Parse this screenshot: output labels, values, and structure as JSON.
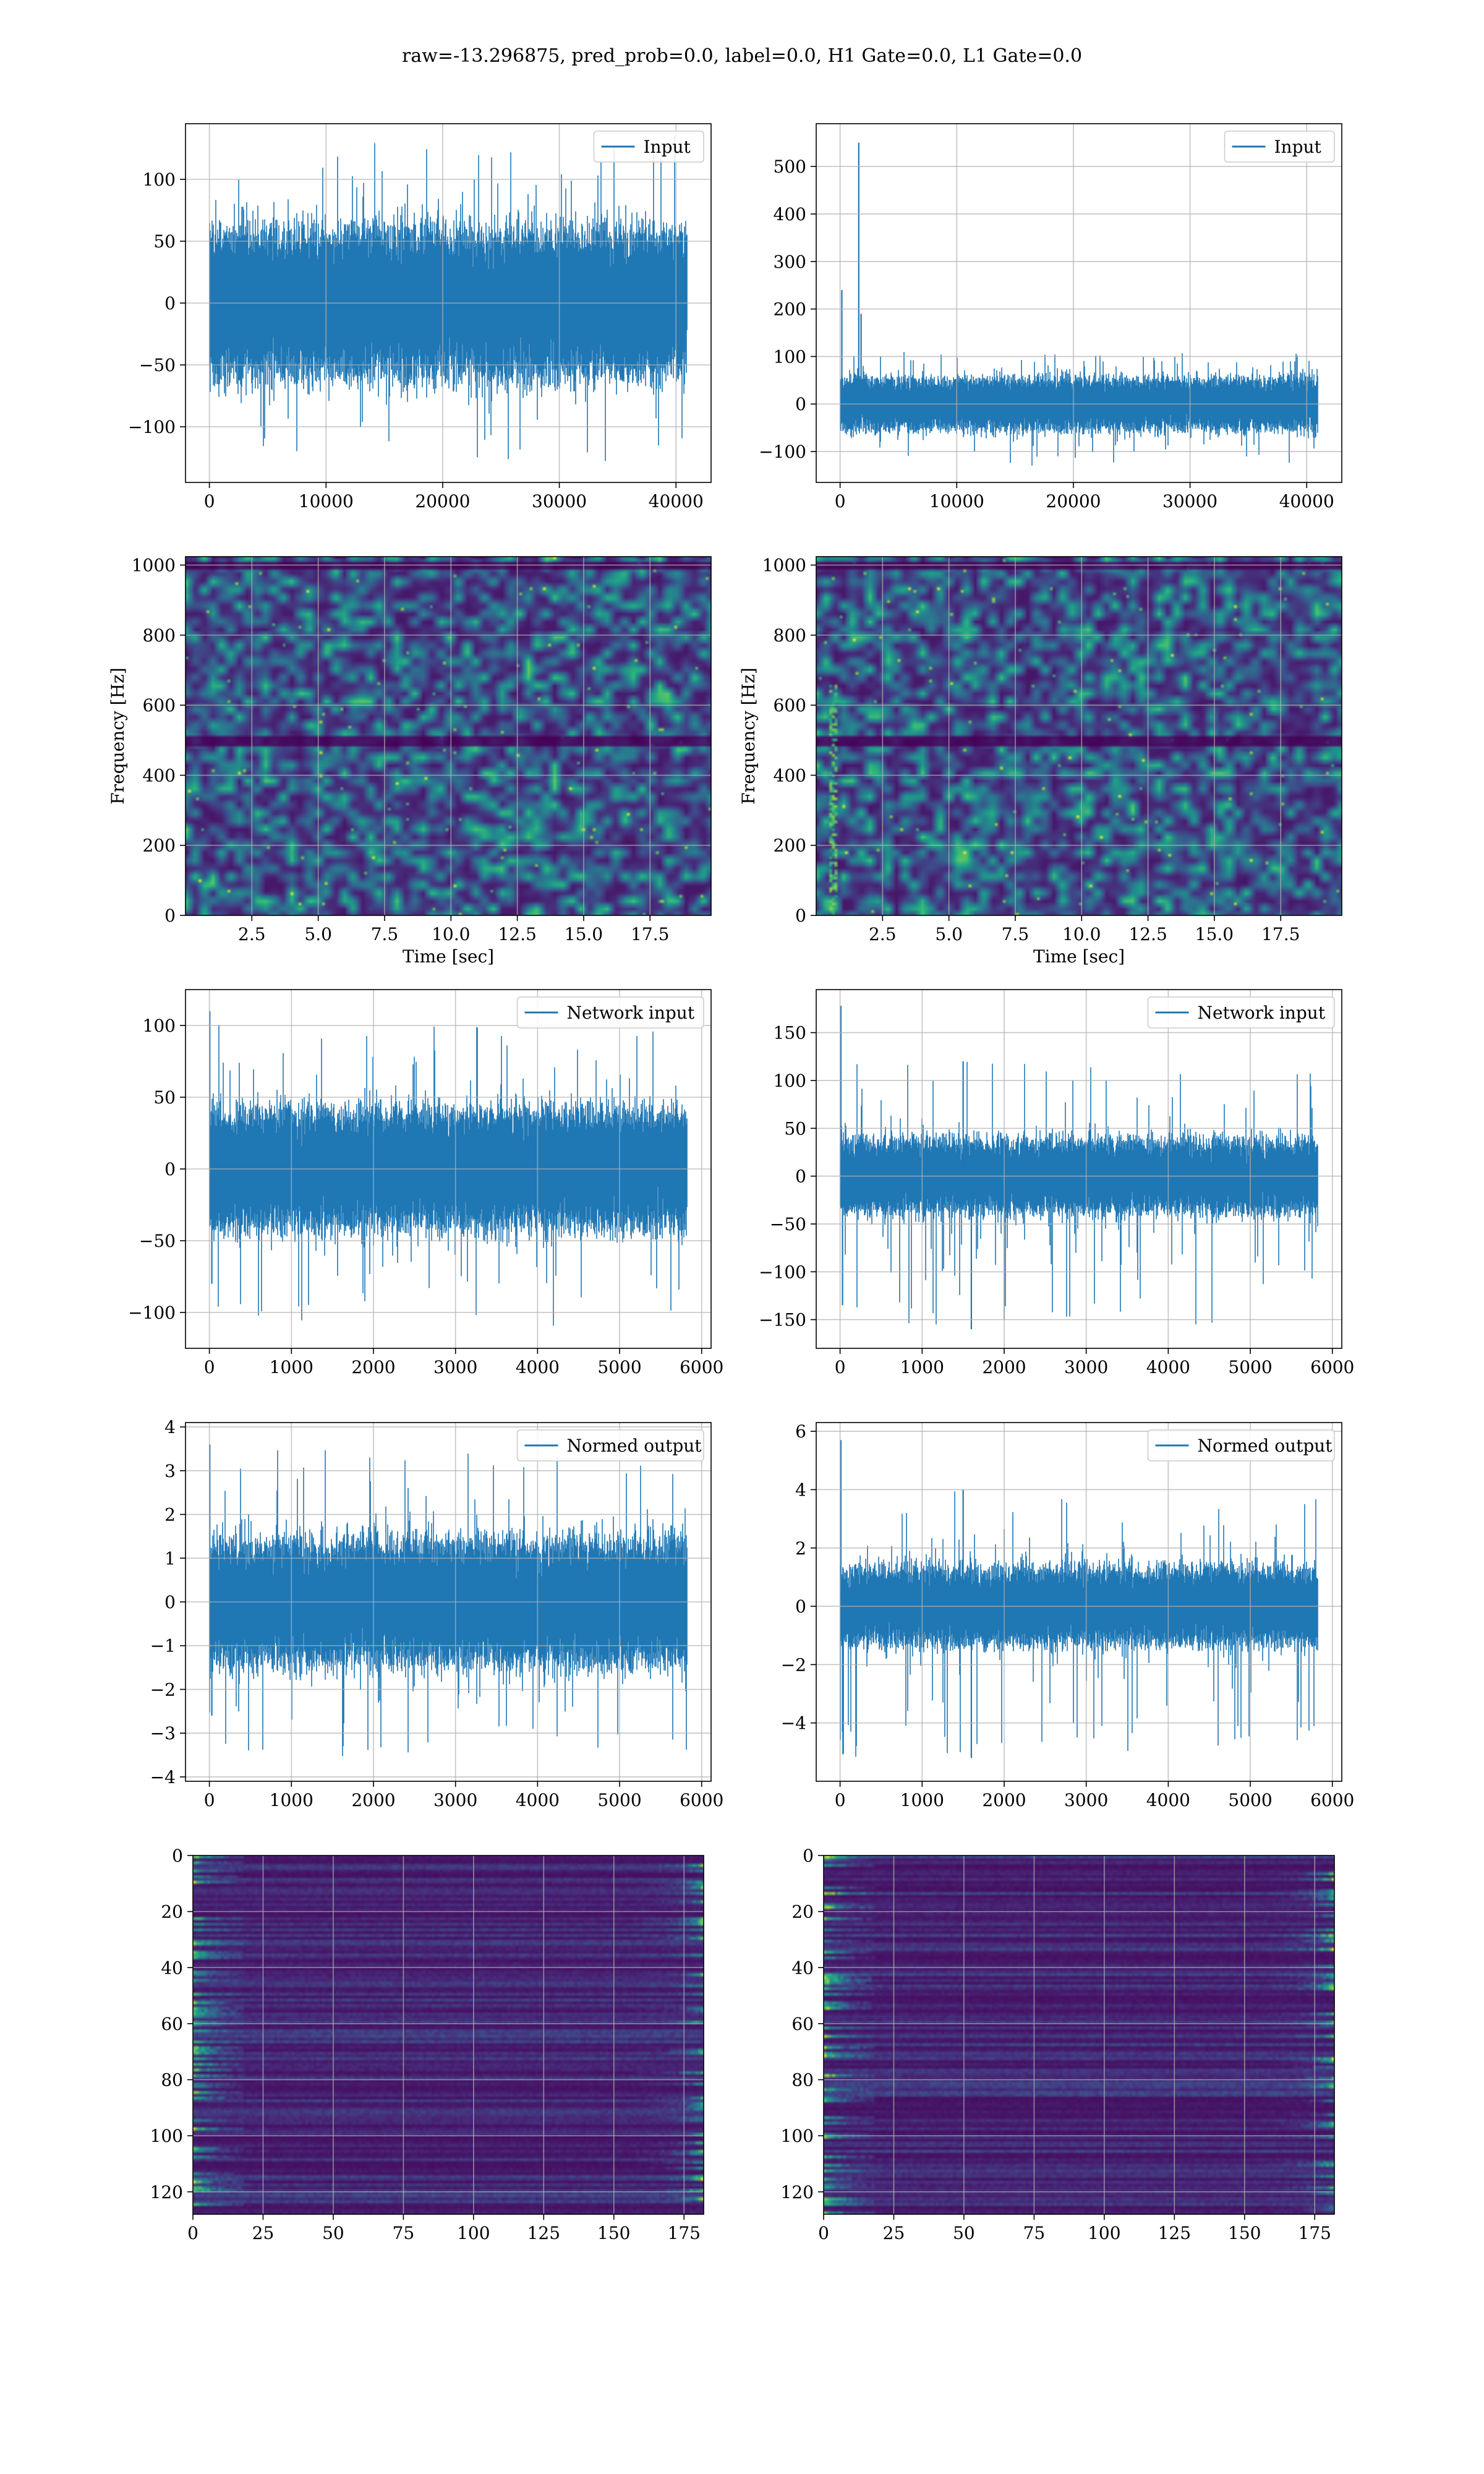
{
  "figure": {
    "suptitle": "raw=-13.296875, pred_prob=0.0, label=0.0, H1 Gate=0.0, L1 Gate=0.0"
  },
  "colors": {
    "line": "#1f77b4",
    "grid": "#b0b0b0",
    "viridis": [
      "#440154",
      "#482878",
      "#3e4989",
      "#31688e",
      "#26828e",
      "#1f9e89",
      "#35b779",
      "#6ece58",
      "#b5de2b",
      "#fde725"
    ]
  },
  "chart_data": [
    {
      "id": "h1-input",
      "type": "line",
      "row": 0,
      "col": 0,
      "series": [
        {
          "name": "Input",
          "amplitude": 55,
          "spike_max": 135,
          "spike_min": -130,
          "n": 40960
        }
      ],
      "legend": "Input",
      "legend_loc": "upper right",
      "xlim": [
        -2048,
        43008
      ],
      "ylim": [
        -145,
        145
      ],
      "xticks": [
        0,
        10000,
        20000,
        30000,
        40000
      ],
      "xticklabels": [
        "0",
        "10000",
        "20000",
        "30000",
        "40000"
      ],
      "yticks": [
        -100,
        -50,
        0,
        50,
        100
      ],
      "yticklabels": [
        "−100",
        "−50",
        "0",
        "50",
        "100"
      ],
      "grid": true
    },
    {
      "id": "l1-input",
      "type": "line",
      "row": 0,
      "col": 1,
      "series": [
        {
          "name": "Input",
          "amplitude": 50,
          "spike_max": 110,
          "spike_min": -130,
          "n": 40960,
          "spikes": [
            [
              150,
              240
            ],
            [
              1600,
              550
            ],
            [
              1800,
              190
            ]
          ]
        }
      ],
      "legend": "Input",
      "legend_loc": "upper right",
      "xlim": [
        -2048,
        43008
      ],
      "ylim": [
        -165,
        590
      ],
      "xticks": [
        0,
        10000,
        20000,
        30000,
        40000
      ],
      "xticklabels": [
        "0",
        "10000",
        "20000",
        "30000",
        "40000"
      ],
      "yticks": [
        -100,
        0,
        100,
        200,
        300,
        400,
        500
      ],
      "yticklabels": [
        "−100",
        "0",
        "100",
        "200",
        "300",
        "400",
        "500"
      ],
      "grid": true
    },
    {
      "id": "h1-spectrogram",
      "type": "heatmap",
      "row": 1,
      "col": 0,
      "xlim": [
        0,
        19.8
      ],
      "ylim": [
        0,
        1024
      ],
      "xticks": [
        2.5,
        5.0,
        7.5,
        10.0,
        12.5,
        15.0,
        17.5
      ],
      "xticklabels": [
        "2.5",
        "5.0",
        "7.5",
        "10.0",
        "12.5",
        "15.0",
        "17.5"
      ],
      "yticks": [
        0,
        200,
        400,
        600,
        800,
        1000
      ],
      "yticklabels": [
        "0",
        "200",
        "400",
        "600",
        "800",
        "1000"
      ],
      "xlabel": "Time [sec]",
      "ylabel": "Frequency [Hz]",
      "grid": true,
      "dark_bands": [
        500,
        1000
      ],
      "hot_strip_x": null
    },
    {
      "id": "l1-spectrogram",
      "type": "heatmap",
      "row": 1,
      "col": 1,
      "xlim": [
        0,
        19.8
      ],
      "ylim": [
        0,
        1024
      ],
      "xticks": [
        2.5,
        5.0,
        7.5,
        10.0,
        12.5,
        15.0,
        17.5
      ],
      "xticklabels": [
        "2.5",
        "5.0",
        "7.5",
        "10.0",
        "12.5",
        "15.0",
        "17.5"
      ],
      "yticks": [
        0,
        200,
        400,
        600,
        800,
        1000
      ],
      "yticklabels": [
        "0",
        "200",
        "400",
        "600",
        "800",
        "1000"
      ],
      "xlabel": "Time [sec]",
      "ylabel": "Frequency [Hz]",
      "grid": true,
      "dark_bands": [
        500,
        1000
      ],
      "hot_strip_x": 0.6
    },
    {
      "id": "h1-network-input",
      "type": "line",
      "row": 2,
      "col": 0,
      "series": [
        {
          "name": "Network input",
          "amplitude": 38,
          "spike_max": 105,
          "spike_min": -112,
          "n": 5824,
          "spikes": [
            [
              5,
              110
            ],
            [
              30,
              -80
            ]
          ]
        }
      ],
      "legend": "Network input",
      "legend_loc": "upper right",
      "xlim": [
        -291,
        6115
      ],
      "ylim": [
        -125,
        125
      ],
      "xticks": [
        0,
        1000,
        2000,
        3000,
        4000,
        5000,
        6000
      ],
      "xticklabels": [
        "0",
        "1000",
        "2000",
        "3000",
        "4000",
        "5000",
        "6000"
      ],
      "yticks": [
        -100,
        -50,
        0,
        50,
        100
      ],
      "yticklabels": [
        "−100",
        "−50",
        "0",
        "50",
        "100"
      ],
      "grid": true
    },
    {
      "id": "l1-network-input",
      "type": "line",
      "row": 2,
      "col": 1,
      "series": [
        {
          "name": "Network input",
          "amplitude": 35,
          "spike_max": 120,
          "spike_min": -160,
          "n": 5824,
          "spikes": [
            [
              10,
              178
            ],
            [
              30,
              -135
            ],
            [
              1600,
              -160
            ],
            [
              1500,
              120
            ]
          ]
        }
      ],
      "legend": "Network input",
      "legend_loc": "upper right",
      "xlim": [
        -291,
        6115
      ],
      "ylim": [
        -180,
        195
      ],
      "xticks": [
        0,
        1000,
        2000,
        3000,
        4000,
        5000,
        6000
      ],
      "xticklabels": [
        "0",
        "1000",
        "2000",
        "3000",
        "4000",
        "5000",
        "6000"
      ],
      "yticks": [
        -150,
        -100,
        -50,
        0,
        50,
        100,
        150
      ],
      "yticklabels": [
        "−150",
        "−100",
        "−50",
        "0",
        "50",
        "100",
        "150"
      ],
      "grid": true
    },
    {
      "id": "h1-normed-output",
      "type": "line",
      "row": 3,
      "col": 0,
      "series": [
        {
          "name": "Normed output",
          "amplitude": 1.3,
          "spike_max": 3.5,
          "spike_min": -3.6,
          "n": 5824,
          "spikes": [
            [
              5,
              3.6
            ],
            [
              30,
              -2.6
            ]
          ]
        }
      ],
      "legend": "Normed output",
      "legend_loc": "upper right",
      "xlim": [
        -291,
        6115
      ],
      "ylim": [
        -4.1,
        4.1
      ],
      "xticks": [
        0,
        1000,
        2000,
        3000,
        4000,
        5000,
        6000
      ],
      "xticklabels": [
        "0",
        "1000",
        "2000",
        "3000",
        "4000",
        "5000",
        "6000"
      ],
      "yticks": [
        -4,
        -3,
        -2,
        -1,
        0,
        1,
        2,
        3,
        4
      ],
      "yticklabels": [
        "−4",
        "−3",
        "−2",
        "−1",
        "0",
        "1",
        "2",
        "3",
        "4"
      ],
      "grid": true
    },
    {
      "id": "l1-normed-output",
      "type": "line",
      "row": 3,
      "col": 1,
      "series": [
        {
          "name": "Normed output",
          "amplitude": 1.2,
          "spike_max": 4.0,
          "spike_min": -5.2,
          "n": 5824,
          "spikes": [
            [
              10,
              5.7
            ],
            [
              30,
              -4.3
            ],
            [
              1600,
              -5.2
            ],
            [
              1500,
              4.0
            ]
          ]
        }
      ],
      "legend": "Normed output",
      "legend_loc": "upper right",
      "xlim": [
        -291,
        6115
      ],
      "ylim": [
        -6.0,
        6.3
      ],
      "xticks": [
        0,
        1000,
        2000,
        3000,
        4000,
        5000,
        6000
      ],
      "xticklabels": [
        "0",
        "1000",
        "2000",
        "3000",
        "4000",
        "5000",
        "6000"
      ],
      "yticks": [
        -4,
        -2,
        0,
        2,
        4,
        6
      ],
      "yticklabels": [
        "−4",
        "−2",
        "0",
        "2",
        "4",
        "6"
      ],
      "grid": true
    },
    {
      "id": "h1-feature-map",
      "type": "heatmap",
      "row": 4,
      "col": 0,
      "xlim": [
        0,
        182
      ],
      "ylim": [
        128,
        0
      ],
      "xticks": [
        0,
        25,
        50,
        75,
        100,
        125,
        150,
        175
      ],
      "xticklabels": [
        "0",
        "25",
        "50",
        "75",
        "100",
        "125",
        "150",
        "175"
      ],
      "yticks": [
        0,
        20,
        40,
        60,
        80,
        100,
        120
      ],
      "yticklabels": [
        "0",
        "20",
        "40",
        "60",
        "80",
        "100",
        "120"
      ],
      "grid": true
    },
    {
      "id": "l1-feature-map",
      "type": "heatmap",
      "row": 4,
      "col": 1,
      "xlim": [
        0,
        182
      ],
      "ylim": [
        128,
        0
      ],
      "xticks": [
        0,
        25,
        50,
        75,
        100,
        125,
        150,
        175
      ],
      "xticklabels": [
        "0",
        "25",
        "50",
        "75",
        "100",
        "125",
        "150",
        "175"
      ],
      "yticks": [
        0,
        20,
        40,
        60,
        80,
        100,
        120
      ],
      "yticklabels": [
        "0",
        "20",
        "40",
        "60",
        "80",
        "100",
        "120"
      ],
      "grid": true
    }
  ]
}
